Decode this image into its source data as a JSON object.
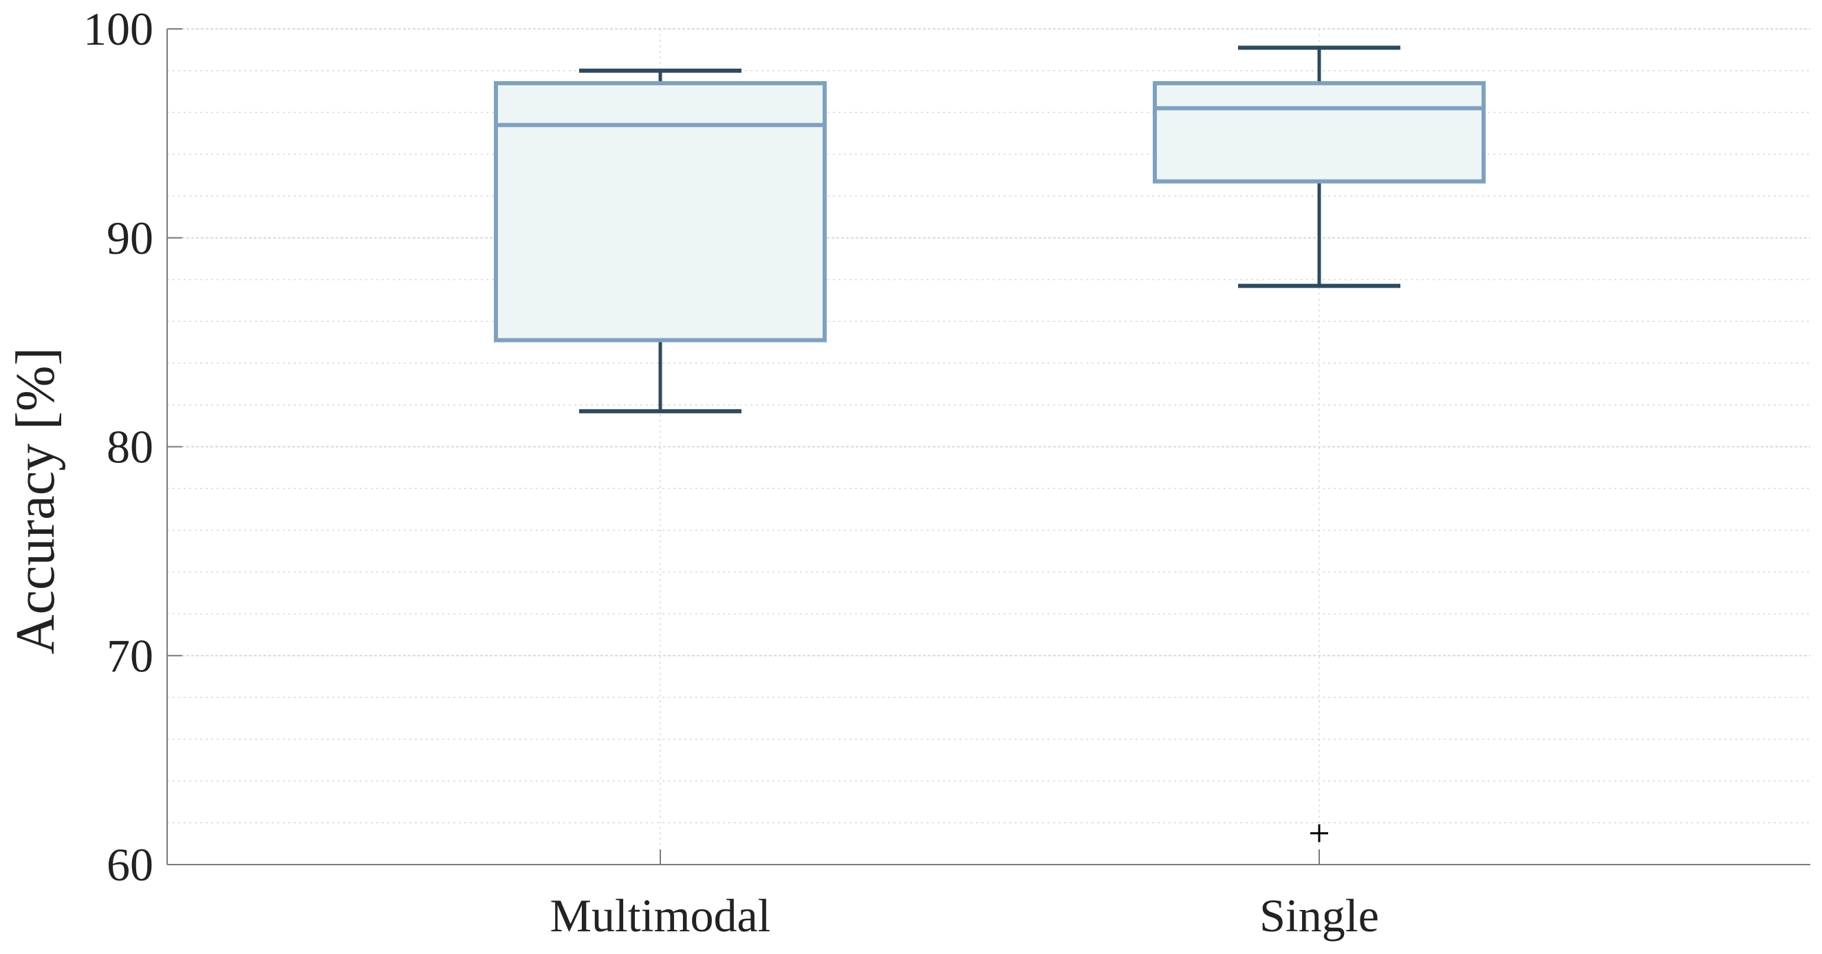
{
  "chart_data": {
    "type": "box",
    "title": "",
    "xlabel": "",
    "ylabel": "Accuracy [%]",
    "ylim": [
      60,
      100
    ],
    "yticks": [
      60,
      70,
      80,
      90,
      100
    ],
    "minor_grid_step": 2,
    "grid": true,
    "legend": "none",
    "categories": [
      "Multimodal",
      "Single"
    ],
    "boxes": [
      {
        "category": "Multimodal",
        "whisker_low": 81.7,
        "q1": 85.1,
        "median": 95.4,
        "q3": 97.4,
        "whisker_high": 98.0,
        "outliers": []
      },
      {
        "category": "Single",
        "whisker_low": 87.7,
        "q1": 92.7,
        "median": 96.2,
        "q3": 97.4,
        "whisker_high": 99.1,
        "outliers": [
          61.5
        ]
      }
    ],
    "colors": {
      "box_edge": "#7ea1bf",
      "box_fill": "#edf5f7",
      "whisker": "#2e4a5f",
      "outlier": "#000000",
      "axis": "#7a7a7a",
      "grid": "#d9d9d9"
    }
  }
}
